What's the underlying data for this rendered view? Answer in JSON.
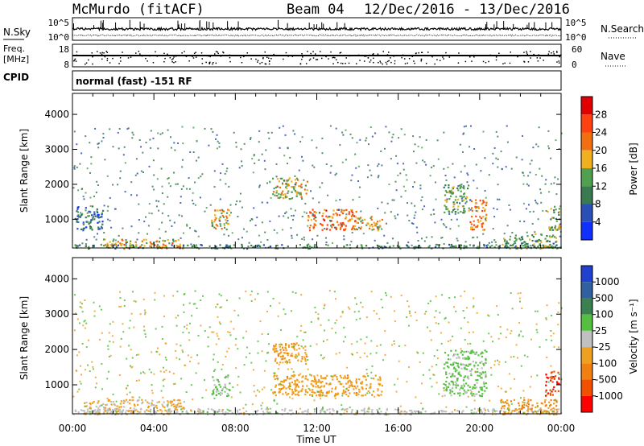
{
  "header": {
    "site": "McMurdo (fitACF)",
    "beam": "Beam 04",
    "date_range": "12/Dec/2016 - 13/Dec/2016"
  },
  "noise_panel": {
    "left_label": "N.Sky",
    "right_label": "N.Search",
    "tick_top": "10^5",
    "tick_bottom": "10^0",
    "right_tick_top": "10^5",
    "right_tick_bottom": "10^0"
  },
  "freq_panel": {
    "left_label_line1": "Freq.",
    "left_label_line2": "[MHz]",
    "left_tick_top": "18",
    "left_tick_bottom": "8",
    "right_label": "Nave",
    "right_tick_top": "60",
    "right_tick_bottom": "0"
  },
  "cpid": {
    "label": "CPID",
    "text": "normal (fast) -151 RF"
  },
  "colors": {
    "power_scale": [
      "#1030ff",
      "#2a50b8",
      "#3a7a50",
      "#50a050",
      "#f0b020",
      "#f07010",
      "#ff4010",
      "#e00000"
    ],
    "velocity_scale": [
      "#2040d0",
      "#3060a0",
      "#3a8050",
      "#55c040",
      "#c0c0c0",
      "#f0a020",
      "#f08010",
      "#f05000",
      "#ff0000"
    ]
  },
  "chart_data": [
    {
      "type": "heatmap",
      "title": "",
      "ylabel": "Slant Range [km]",
      "xlabel": "",
      "ylim": [
        180,
        4600
      ],
      "yticks": [
        "1000",
        "2000",
        "3000",
        "4000"
      ],
      "colorbar": {
        "label": "Power [dB]",
        "ticks": [
          "4",
          "8",
          "12",
          "16",
          "20",
          "24",
          "28"
        ],
        "range": [
          0,
          30
        ]
      },
      "echo_regions": [
        {
          "t_start": 0.0,
          "t_end": 24.0,
          "r_min": 180,
          "r_max": 300,
          "value": 10
        },
        {
          "t_start": 1.5,
          "t_end": 5.5,
          "r_min": 180,
          "r_max": 450,
          "value": 18
        },
        {
          "t_start": 0.1,
          "t_end": 1.5,
          "r_min": 700,
          "r_max": 1400,
          "value": 8
        },
        {
          "t_start": 6.8,
          "t_end": 7.7,
          "r_min": 700,
          "r_max": 1300,
          "value": 18
        },
        {
          "t_start": 9.8,
          "t_end": 11.5,
          "r_min": 1600,
          "r_max": 2200,
          "value": 16
        },
        {
          "t_start": 11.5,
          "t_end": 14.0,
          "r_min": 700,
          "r_max": 1300,
          "value": 22
        },
        {
          "t_start": 14.0,
          "t_end": 15.2,
          "r_min": 700,
          "r_max": 1100,
          "value": 18
        },
        {
          "t_start": 18.2,
          "t_end": 19.5,
          "r_min": 1200,
          "r_max": 2000,
          "value": 12
        },
        {
          "t_start": 19.5,
          "t_end": 20.3,
          "r_min": 700,
          "r_max": 1600,
          "value": 20
        },
        {
          "t_start": 21.0,
          "t_end": 23.8,
          "r_min": 180,
          "r_max": 600,
          "value": 12
        },
        {
          "t_start": 23.3,
          "t_end": 23.9,
          "r_min": 700,
          "r_max": 1400,
          "value": 14
        }
      ]
    },
    {
      "type": "heatmap",
      "title": "",
      "ylabel": "Slant Range [km]",
      "xlabel": "Time UT",
      "ylim": [
        180,
        4600
      ],
      "yticks": [
        "1000",
        "2000",
        "3000",
        "4000"
      ],
      "xticks": [
        "00:00",
        "04:00",
        "08:00",
        "12:00",
        "16:00",
        "20:00",
        "00:00"
      ],
      "colorbar": {
        "label": "Velocity [m s⁻¹]",
        "ticks": [
          "1000",
          "500",
          "100",
          "25",
          "-25",
          "-100",
          "-500",
          "-1000"
        ],
        "range": [
          -1200,
          1200
        ]
      },
      "echo_regions": [
        {
          "t_start": 0.0,
          "t_end": 24.0,
          "r_min": 180,
          "r_max": 350,
          "value": 0
        },
        {
          "t_start": 0.5,
          "t_end": 5.5,
          "r_min": 180,
          "r_max": 600,
          "value": -150
        },
        {
          "t_start": 6.8,
          "t_end": 7.7,
          "r_min": 700,
          "r_max": 1300,
          "value": 150
        },
        {
          "t_start": 9.8,
          "t_end": 11.5,
          "r_min": 1600,
          "r_max": 2200,
          "value": -300
        },
        {
          "t_start": 9.8,
          "t_end": 15.2,
          "r_min": 700,
          "r_max": 1300,
          "value": -300
        },
        {
          "t_start": 18.2,
          "t_end": 20.3,
          "r_min": 700,
          "r_max": 2000,
          "value": 200
        },
        {
          "t_start": 21.0,
          "t_end": 23.8,
          "r_min": 180,
          "r_max": 600,
          "value": -400
        },
        {
          "t_start": 23.2,
          "t_end": 23.9,
          "r_min": 700,
          "r_max": 1400,
          "value": -900
        }
      ]
    }
  ]
}
